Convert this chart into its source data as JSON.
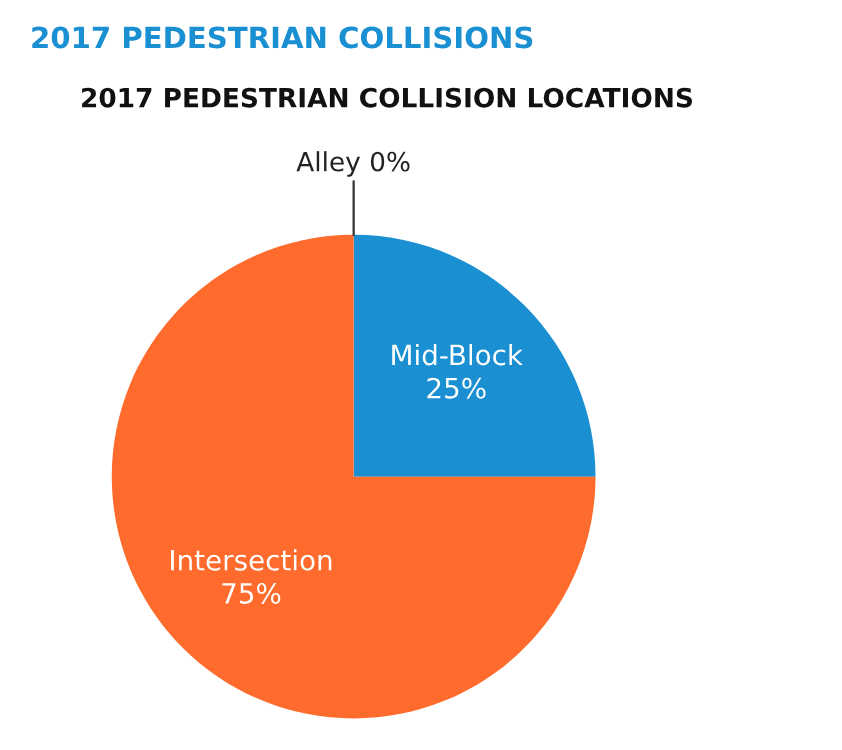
{
  "chart_data": {
    "type": "pie",
    "title": "2017 PEDESTRIAN COLLISIONS",
    "subtitle": "2017 PEDESTRIAN COLLISION LOCATIONS",
    "categories": [
      "Alley",
      "Mid-Block",
      "Intersection"
    ],
    "values": [
      0,
      25,
      75
    ],
    "value_labels": [
      "0%",
      "25%",
      "75%"
    ],
    "colors": [
      "#9e9e9e",
      "#1a8fd1",
      "#ff6b2c"
    ],
    "legend": false
  }
}
